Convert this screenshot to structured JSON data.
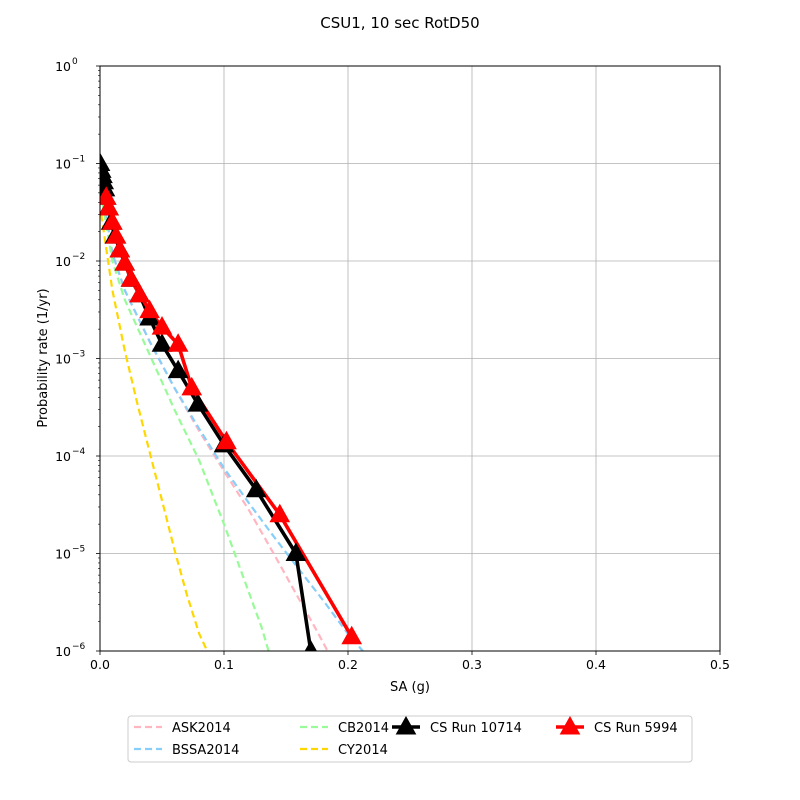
{
  "chart_data": {
    "type": "line",
    "title": "CSU1, 10 sec RotD50",
    "xlabel": "SA (g)",
    "ylabel": "Probability rate (1/yr)",
    "xlim": [
      0,
      0.5
    ],
    "ylim": [
      1e-06,
      1
    ],
    "yscale": "log",
    "grid": true,
    "legend_position": "bottom-center",
    "xticks": [
      {
        "value": 0.0,
        "label": "0.0"
      },
      {
        "value": 0.1,
        "label": "0.1"
      },
      {
        "value": 0.2,
        "label": "0.2"
      },
      {
        "value": 0.3,
        "label": "0.3"
      },
      {
        "value": 0.4,
        "label": "0.4"
      },
      {
        "value": 0.5,
        "label": "0.5"
      }
    ],
    "yticks": [
      {
        "value": 1e-06,
        "mant": "10",
        "exp": "−6"
      },
      {
        "value": 1e-05,
        "mant": "10",
        "exp": "−5"
      },
      {
        "value": 0.0001,
        "mant": "10",
        "exp": "−4"
      },
      {
        "value": 0.001,
        "mant": "10",
        "exp": "−3"
      },
      {
        "value": 0.01,
        "mant": "10",
        "exp": "−2"
      },
      {
        "value": 0.1,
        "mant": "10",
        "exp": "−1"
      },
      {
        "value": 1,
        "mant": "10",
        "exp": "0"
      }
    ],
    "series": [
      {
        "name": "ASK2014",
        "color": "#ffb6c1",
        "style": "dashed",
        "x": [
          0.002,
          0.01,
          0.02,
          0.04,
          0.06,
          0.08,
          0.1,
          0.12,
          0.14,
          0.16,
          0.175,
          0.19
        ],
        "y": [
          0.05,
          0.012,
          0.005,
          0.0015,
          0.0005,
          0.00018,
          7e-05,
          2.8e-05,
          1e-05,
          3.5e-06,
          1.6e-06,
          7e-07
        ]
      },
      {
        "name": "BSSA2014",
        "color": "#87cefa",
        "style": "dashed",
        "x": [
          0.002,
          0.01,
          0.02,
          0.04,
          0.06,
          0.08,
          0.1,
          0.12,
          0.14,
          0.16,
          0.18,
          0.2,
          0.215
        ],
        "y": [
          0.05,
          0.012,
          0.005,
          0.0015,
          0.0005,
          0.00019,
          7.5e-05,
          3.3e-05,
          1.5e-05,
          7e-06,
          3.3e-06,
          1.5e-06,
          9e-07
        ]
      },
      {
        "name": "CB2014",
        "color": "#98fb98",
        "style": "dashed",
        "x": [
          0.002,
          0.01,
          0.02,
          0.04,
          0.06,
          0.08,
          0.1,
          0.12,
          0.13,
          0.137,
          0.14
        ],
        "y": [
          0.04,
          0.01,
          0.004,
          0.0011,
          0.0003,
          9e-05,
          2e-05,
          4e-06,
          1.8e-06,
          9e-07,
          6e-07
        ]
      },
      {
        "name": "CY2014",
        "color": "#ffd700",
        "style": "dashed",
        "x": [
          0.001,
          0.01,
          0.02,
          0.03,
          0.04,
          0.05,
          0.06,
          0.07,
          0.08,
          0.09,
          0.097
        ],
        "y": [
          0.03,
          0.005,
          0.0012,
          0.00035,
          0.00011,
          3.5e-05,
          1.1e-05,
          3.8e-06,
          1.5e-06,
          8e-07,
          6e-07
        ]
      },
      {
        "name": "CS Run 10714",
        "color": "#000000",
        "style": "solid",
        "marker": "triangle",
        "x": [
          0.0,
          0.001,
          0.002,
          0.003,
          0.004,
          0.005,
          0.007,
          0.009,
          0.012,
          0.016,
          0.02,
          0.025,
          0.032,
          0.04,
          0.05,
          0.063,
          0.079,
          0.1,
          0.126,
          0.158,
          0.17
        ],
        "y": [
          0.1,
          0.085,
          0.075,
          0.065,
          0.055,
          0.045,
          0.035,
          0.025,
          0.018,
          0.013,
          0.0095,
          0.0065,
          0.0045,
          0.0026,
          0.0014,
          0.00075,
          0.00034,
          0.00013,
          4.5e-05,
          1e-05,
          1e-06
        ]
      },
      {
        "name": "CS Run 5994",
        "color": "#ff0000",
        "style": "solid",
        "marker": "triangle",
        "x": [
          0.005,
          0.007,
          0.01,
          0.013,
          0.016,
          0.02,
          0.025,
          0.032,
          0.04,
          0.05,
          0.063,
          0.074,
          0.102,
          0.145,
          0.203
        ],
        "y": [
          0.045,
          0.035,
          0.025,
          0.018,
          0.013,
          0.0095,
          0.0065,
          0.0045,
          0.0031,
          0.0021,
          0.0014,
          0.0005,
          0.00014,
          2.5e-05,
          1.4e-06
        ]
      }
    ]
  }
}
